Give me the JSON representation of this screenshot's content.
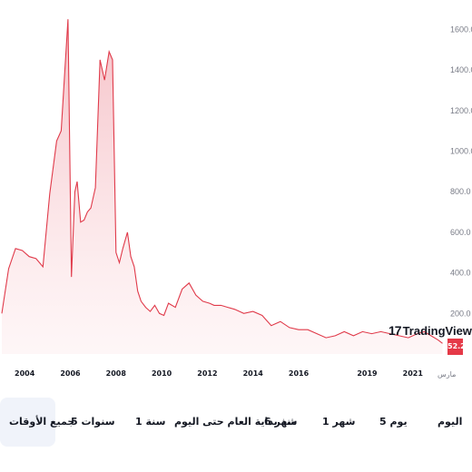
{
  "chart_data": {
    "type": "area",
    "x": [
      2003.0,
      2003.3,
      2003.6,
      2003.9,
      2004.2,
      2004.5,
      2004.8,
      2005.1,
      2005.4,
      2005.6,
      2005.75,
      2005.9,
      2006.05,
      2006.2,
      2006.3,
      2006.45,
      2006.6,
      2006.75,
      2006.9,
      2007.1,
      2007.3,
      2007.5,
      2007.7,
      2007.85,
      2008.0,
      2008.15,
      2008.3,
      2008.5,
      2008.65,
      2008.8,
      2008.95,
      2009.1,
      2009.3,
      2009.5,
      2009.7,
      2009.9,
      2010.1,
      2010.3,
      2010.6,
      2010.9,
      2011.2,
      2011.5,
      2011.8,
      2012.1,
      2012.3,
      2012.6,
      2012.9,
      2013.2,
      2013.6,
      2014.0,
      2014.4,
      2014.8,
      2015.2,
      2015.6,
      2016.0,
      2016.4,
      2016.8,
      2017.2,
      2017.6,
      2018.0,
      2018.4,
      2018.8,
      2019.2,
      2019.6,
      2020.0,
      2020.4,
      2020.8,
      2021.2,
      2021.5,
      2021.8,
      2022.1,
      2022.3
    ],
    "values": [
      200,
      420,
      520,
      510,
      480,
      470,
      430,
      790,
      1050,
      1100,
      1380,
      1650,
      380,
      800,
      850,
      650,
      660,
      700,
      720,
      820,
      1450,
      1350,
      1490,
      1450,
      500,
      450,
      520,
      600,
      480,
      430,
      310,
      260,
      230,
      210,
      240,
      200,
      190,
      250,
      230,
      320,
      350,
      290,
      260,
      250,
      240,
      240,
      230,
      220,
      200,
      210,
      190,
      140,
      160,
      130,
      120,
      120,
      100,
      80,
      90,
      110,
      90,
      110,
      100,
      110,
      100,
      90,
      80,
      100,
      110,
      90,
      70,
      52.2
    ],
    "ylim": [
      0,
      1700
    ],
    "y_ticks": [
      "200.0",
      "400.0",
      "600.0",
      "800.0",
      "1000.0",
      "1200.0",
      "1400.0",
      "1600.0"
    ],
    "x_ticks": [
      "2004",
      "2006",
      "2008",
      "2010",
      "2012",
      "2014",
      "2016",
      "2019",
      "2021"
    ],
    "x_tick_years": [
      2004,
      2006,
      2008,
      2010,
      2012,
      2014,
      2016,
      2019,
      2021
    ],
    "xlim": [
      2003,
      2022.4
    ],
    "last_value": "52.2",
    "axis_word": "مارس",
    "line_color": "#e03a4a",
    "fill_color": "#f7d5d9",
    "grid": false
  },
  "brand": {
    "name": "TradingView",
    "mark": "17"
  },
  "ranges": [
    {
      "id": "day",
      "label": "اليوم"
    },
    {
      "id": "5d",
      "label": "5 يوم"
    },
    {
      "id": "1m",
      "label": "1 شهر"
    },
    {
      "id": "6m",
      "label": "6 شهر"
    },
    {
      "id": "ytd",
      "label": "منذ بداية العام حتى اليوم"
    },
    {
      "id": "1y",
      "label": "1 سنة"
    },
    {
      "id": "5y",
      "label": "5 سنوات"
    },
    {
      "id": "all",
      "label": "جميع الأوقات"
    }
  ]
}
